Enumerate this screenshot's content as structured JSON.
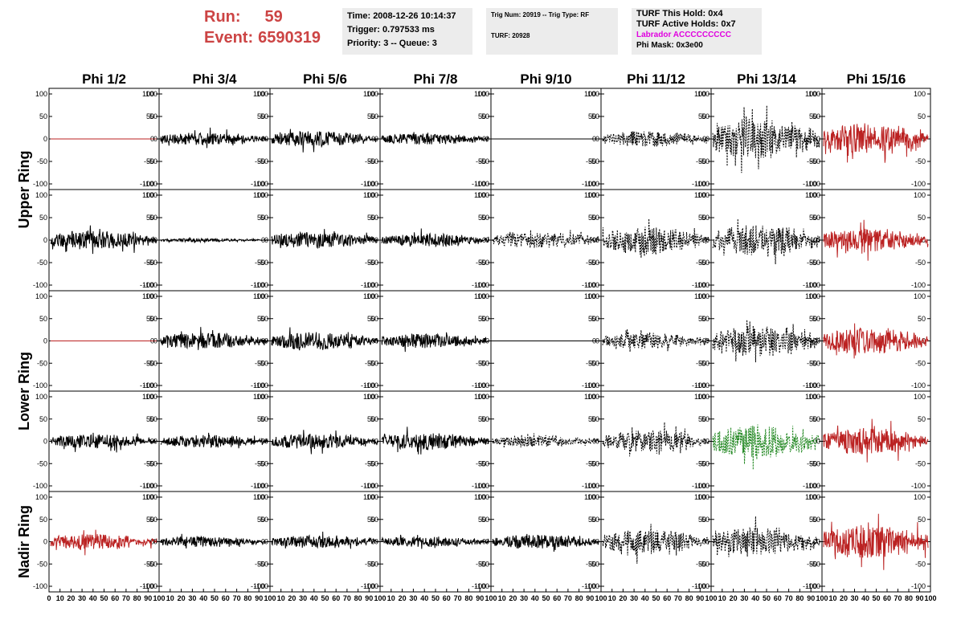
{
  "header": {
    "run_label": "Run:",
    "run_value": "59",
    "event_label": "Event:",
    "event_value": "6590319",
    "time": "Time: 2008-12-26 10:14:37",
    "trigger": "Trigger: 0.797533 ms",
    "priority_queue": "Priority: 3 -- Queue: 3",
    "trig_num_type": "Trig Num: 20919 -- Trig Type: RF",
    "turf": "TURF: 20928",
    "turf_this_hold": "TURF This Hold: 0x4",
    "turf_active_holds": "TURF Active Holds: 0x7",
    "labrador": "Labrador ACCCCCCCCC",
    "phi_mask": "Phi Mask: 0x3e00"
  },
  "colors": {
    "title_red": "#cc4444",
    "trace_black": "#000000",
    "trace_red": "#bb2222",
    "trace_green": "#228822",
    "labrador_magenta": "#e000e0",
    "info_background": "#ececec"
  },
  "chart_data": {
    "type": "line",
    "columns": [
      "Phi 1/2",
      "Phi 3/4",
      "Phi 5/6",
      "Phi 7/8",
      "Phi 9/10",
      "Phi 11/12",
      "Phi 13/14",
      "Phi 15/16"
    ],
    "rows": [
      "Upper Ring",
      "Lower Ring",
      "Nadir Ring"
    ],
    "ylim": [
      -100,
      100
    ],
    "yticks": [
      "100",
      "50",
      "0",
      "-50",
      "-100"
    ],
    "xlim": [
      0,
      100
    ],
    "xticks": [
      "0",
      "10",
      "20",
      "30",
      "40",
      "50",
      "60",
      "70",
      "80",
      "90",
      "100"
    ],
    "grid": false,
    "panels": [
      [
        {
          "color": "red",
          "style": "solid",
          "amp": 0
        },
        {
          "color": "black",
          "style": "solid",
          "amp": 14
        },
        {
          "color": "black",
          "style": "solid",
          "amp": 18
        },
        {
          "color": "black",
          "style": "solid",
          "amp": 13
        },
        {
          "color": "black",
          "style": "solid",
          "amp": 0
        },
        {
          "color": "black",
          "style": "dashed",
          "amp": 18
        },
        {
          "color": "black",
          "style": "dashed",
          "amp": 45
        },
        {
          "color": "red",
          "style": "solid",
          "amp": 35
        }
      ],
      [
        {
          "color": "black",
          "style": "solid",
          "amp": 22
        },
        {
          "color": "black",
          "style": "solid",
          "amp": 4
        },
        {
          "color": "black",
          "style": "solid",
          "amp": 18
        },
        {
          "color": "black",
          "style": "solid",
          "amp": 15
        },
        {
          "color": "black",
          "style": "dashed",
          "amp": 18
        },
        {
          "color": "black",
          "style": "dashed",
          "amp": 32
        },
        {
          "color": "black",
          "style": "dashed",
          "amp": 35
        },
        {
          "color": "red",
          "style": "solid",
          "amp": 28
        }
      ],
      [
        {
          "color": "red",
          "style": "solid",
          "amp": 0
        },
        {
          "color": "black",
          "style": "solid",
          "amp": 18
        },
        {
          "color": "black",
          "style": "solid",
          "amp": 20
        },
        {
          "color": "black",
          "style": "solid",
          "amp": 16
        },
        {
          "color": "black",
          "style": "solid",
          "amp": 0
        },
        {
          "color": "black",
          "style": "dashed",
          "amp": 18
        },
        {
          "color": "black",
          "style": "dashed",
          "amp": 35
        },
        {
          "color": "red",
          "style": "solid",
          "amp": 30
        }
      ],
      [
        {
          "color": "black",
          "style": "solid",
          "amp": 16
        },
        {
          "color": "black",
          "style": "solid",
          "amp": 14
        },
        {
          "color": "black",
          "style": "solid",
          "amp": 18
        },
        {
          "color": "black",
          "style": "solid",
          "amp": 20
        },
        {
          "color": "black",
          "style": "dashed",
          "amp": 12
        },
        {
          "color": "black",
          "style": "dashed",
          "amp": 25
        },
        {
          "color": "green",
          "style": "dashed",
          "amp": 38
        },
        {
          "color": "red",
          "style": "solid",
          "amp": 30
        }
      ],
      [
        {
          "color": "red",
          "style": "solid",
          "amp": 18
        },
        {
          "color": "black",
          "style": "solid",
          "amp": 12
        },
        {
          "color": "black",
          "style": "solid",
          "amp": 14
        },
        {
          "color": "black",
          "style": "solid",
          "amp": 12
        },
        {
          "color": "black",
          "style": "solid",
          "amp": 16
        },
        {
          "color": "black",
          "style": "dashed",
          "amp": 28
        },
        {
          "color": "black",
          "style": "dashed",
          "amp": 32
        },
        {
          "color": "red",
          "style": "solid",
          "amp": 38
        }
      ]
    ]
  }
}
